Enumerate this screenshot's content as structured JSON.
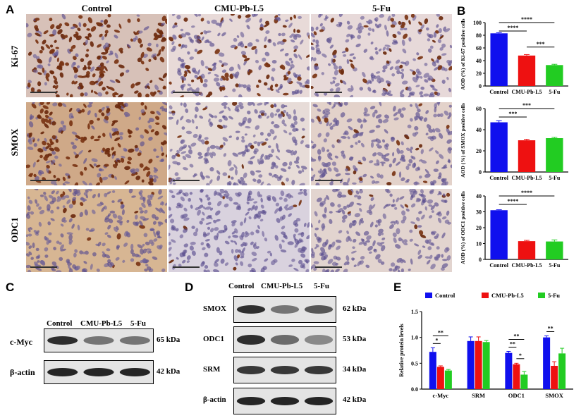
{
  "panels": {
    "A": "A",
    "B": "B",
    "C": "C",
    "D": "D",
    "E": "E"
  },
  "panelA": {
    "columns": [
      "Control",
      "CMU-Pb-L5",
      "5-Fu"
    ],
    "rows": [
      "Ki-67",
      "SMOX",
      "ODC1"
    ],
    "colors": {
      "nucleus_brown": "#6b2a0e",
      "nucleus_blue": "#5a4f8f",
      "bg_light": "#e9d9d6",
      "bg_tan": "#d9b590"
    }
  },
  "chart_data": [
    {
      "type": "bar",
      "categories": [
        "Control",
        "CMU-Pb-L5",
        "5-Fu"
      ],
      "values": [
        83,
        48,
        33
      ],
      "errors": [
        1,
        1.5,
        1.2
      ],
      "colors": [
        "#1010ee",
        "#ee1111",
        "#22cc22"
      ],
      "ylabel": "AOD (%) of Ki-67 positive cells",
      "ylim": [
        0,
        100
      ],
      "ticks": [
        0,
        20,
        40,
        60,
        80,
        100
      ],
      "significance": [
        {
          "from": 0,
          "to": 1,
          "label": "****"
        },
        {
          "from": 0,
          "to": 2,
          "label": "****"
        },
        {
          "from": 1,
          "to": 2,
          "label": "***"
        }
      ]
    },
    {
      "type": "bar",
      "categories": [
        "Control",
        "CMU-Pb-L5",
        "5-Fu"
      ],
      "values": [
        47,
        30,
        32
      ],
      "errors": [
        1.5,
        1,
        0.8
      ],
      "colors": [
        "#1010ee",
        "#ee1111",
        "#22cc22"
      ],
      "ylabel": "AOD (%) of SMOX positive cells",
      "ylim": [
        0,
        60
      ],
      "ticks": [
        0,
        20,
        40,
        60
      ],
      "significance": [
        {
          "from": 0,
          "to": 1,
          "label": "***"
        },
        {
          "from": 0,
          "to": 2,
          "label": "***"
        }
      ]
    },
    {
      "type": "bar",
      "categories": [
        "Control",
        "CMU-Pb-L5",
        "5-Fu"
      ],
      "values": [
        31,
        11.5,
        11.3
      ],
      "errors": [
        0.3,
        0.5,
        1
      ],
      "colors": [
        "#1010ee",
        "#ee1111",
        "#22cc22"
      ],
      "ylabel": "AOD (%) of ODC1 positive cells",
      "ylim": [
        0,
        40
      ],
      "ticks": [
        0,
        10,
        20,
        30,
        40
      ],
      "significance": [
        {
          "from": 0,
          "to": 1,
          "label": "****"
        },
        {
          "from": 0,
          "to": 2,
          "label": "****"
        }
      ]
    },
    {
      "type": "bar",
      "categories": [
        "c-Myc",
        "SRM",
        "ODC1",
        "SMOX"
      ],
      "series": [
        {
          "name": "Control",
          "color": "#1010ee",
          "values": [
            0.72,
            0.93,
            0.7,
            1.0
          ],
          "errors": [
            0.08,
            0.08,
            0.03,
            0.03
          ]
        },
        {
          "name": "CMU-Pb-L5",
          "color": "#ee1111",
          "values": [
            0.43,
            0.93,
            0.48,
            0.45
          ],
          "errors": [
            0.02,
            0.08,
            0.02,
            0.08
          ]
        },
        {
          "name": "5-Fu",
          "color": "#22cc22",
          "values": [
            0.36,
            0.91,
            0.28,
            0.69
          ],
          "errors": [
            0.02,
            0.03,
            0.06,
            0.1
          ]
        }
      ],
      "ylabel": "Relative protein levels",
      "ylim": [
        0,
        1.5
      ],
      "ticks": [
        "0.0",
        "0.5",
        "1.0",
        "1.5"
      ],
      "significance": [
        {
          "cat": 0,
          "from": 0,
          "to": 1,
          "label": "*"
        },
        {
          "cat": 0,
          "from": 0,
          "to": 2,
          "label": "**"
        },
        {
          "cat": 2,
          "from": 0,
          "to": 1,
          "label": "**"
        },
        {
          "cat": 2,
          "from": 0,
          "to": 2,
          "label": "**"
        },
        {
          "cat": 2,
          "from": 1,
          "to": 2,
          "label": "*"
        },
        {
          "cat": 3,
          "from": 0,
          "to": 1,
          "label": "**"
        }
      ]
    }
  ],
  "panelC": {
    "lanes": [
      "Control",
      "CMU-Pb-L5",
      "5-Fu"
    ],
    "bands": [
      {
        "name": "c-Myc",
        "kda": "65 kDa"
      },
      {
        "name": "β-actin",
        "kda": "42 kDa"
      }
    ]
  },
  "panelD": {
    "lanes": [
      "Control",
      "CMU-Pb-L5",
      "5-Fu"
    ],
    "bands": [
      {
        "name": "SMOX",
        "kda": "62 kDa"
      },
      {
        "name": "ODC1",
        "kda": "53 kDa"
      },
      {
        "name": "SRM",
        "kda": "34 kDa"
      },
      {
        "name": "β-actin",
        "kda": "42 kDa"
      }
    ]
  }
}
